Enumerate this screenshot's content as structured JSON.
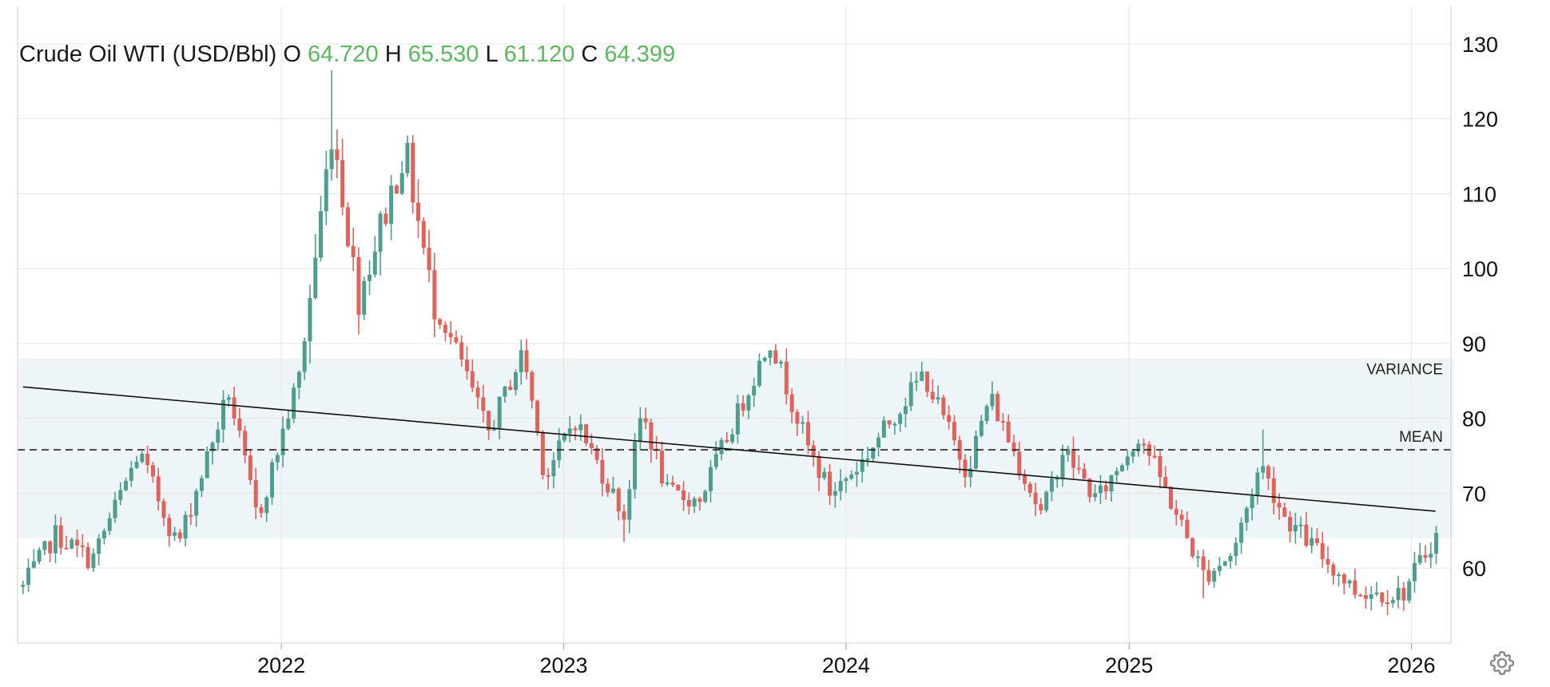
{
  "header": {
    "instrument": "Crude Oil WTI (USD/Bbl)",
    "o_label": "O",
    "o_value": "64.720",
    "h_label": "H",
    "h_value": "65.530",
    "l_label": "L",
    "l_value": "61.120",
    "c_label": "C",
    "c_value": "64.399"
  },
  "colors": {
    "up": "#4e9e8f",
    "down": "#e0625a",
    "band": "#eef5f9",
    "grid": "#e6e6e6",
    "value": "#5cb85c"
  },
  "icons": {
    "settings": "gear-icon"
  },
  "chart_data": {
    "type": "candlestick",
    "title": "Crude Oil WTI (USD/Bbl)",
    "x_start": "2021-01-25",
    "x_end": "2026-02-20",
    "x_ticks": [
      "2022",
      "2023",
      "2024",
      "2025",
      "2026"
    ],
    "ylim": [
      50,
      135
    ],
    "y_ticks": [
      60,
      70,
      80,
      90,
      100,
      110,
      120,
      130
    ],
    "grid": true,
    "band": {
      "label": "VARIANCE",
      "low": 64,
      "high": 88
    },
    "mean": {
      "label": "MEAN",
      "value": 75.8
    },
    "trendline": {
      "start": [
        "2021-02-01",
        84.2
      ],
      "end": [
        "2026-02-01",
        67.6
      ]
    },
    "anchors": [
      [
        "2021-02-01",
        57.5
      ],
      [
        "2021-03-15",
        64.5
      ],
      [
        "2021-05-01",
        61.0
      ],
      [
        "2021-07-01",
        75.5
      ],
      [
        "2021-08-20",
        63.0
      ],
      [
        "2021-10-25",
        83.5
      ],
      [
        "2021-12-01",
        66.5
      ],
      [
        "2022-01-25",
        86.0
      ],
      [
        "2022-03-08",
        119.0
      ],
      [
        "2022-04-10",
        96.0
      ],
      [
        "2022-06-10",
        116.0
      ],
      [
        "2022-07-15",
        96.0
      ],
      [
        "2022-08-20",
        88.0
      ],
      [
        "2022-09-25",
        78.0
      ],
      [
        "2022-11-10",
        89.0
      ],
      [
        "2022-12-08",
        72.0
      ],
      [
        "2023-01-15",
        80.0
      ],
      [
        "2023-03-20",
        67.0
      ],
      [
        "2023-04-12",
        81.0
      ],
      [
        "2023-05-15",
        70.0
      ],
      [
        "2023-06-25",
        69.0
      ],
      [
        "2023-09-25",
        90.5
      ],
      [
        "2023-11-15",
        75.5
      ],
      [
        "2023-12-12",
        70.0
      ],
      [
        "2024-01-20",
        74.0
      ],
      [
        "2024-04-10",
        86.0
      ],
      [
        "2024-06-05",
        73.0
      ],
      [
        "2024-07-05",
        83.0
      ],
      [
        "2024-09-10",
        67.0
      ],
      [
        "2024-10-08",
        76.0
      ],
      [
        "2024-11-20",
        69.0
      ],
      [
        "2025-01-15",
        78.0
      ],
      [
        "2025-04-08",
        59.0
      ],
      [
        "2025-05-15",
        62.0
      ],
      [
        "2025-06-20",
        74.0
      ],
      [
        "2025-07-20",
        67.0
      ],
      [
        "2025-10-20",
        57.0
      ],
      [
        "2025-12-20",
        56.5
      ],
      [
        "2026-02-01",
        64.4
      ]
    ],
    "spikes": [
      [
        "2022-03-08",
        126.5
      ],
      [
        "2023-03-17",
        63.5
      ],
      [
        "2025-04-07",
        56.0
      ],
      [
        "2025-06-23",
        78.5
      ]
    ]
  }
}
